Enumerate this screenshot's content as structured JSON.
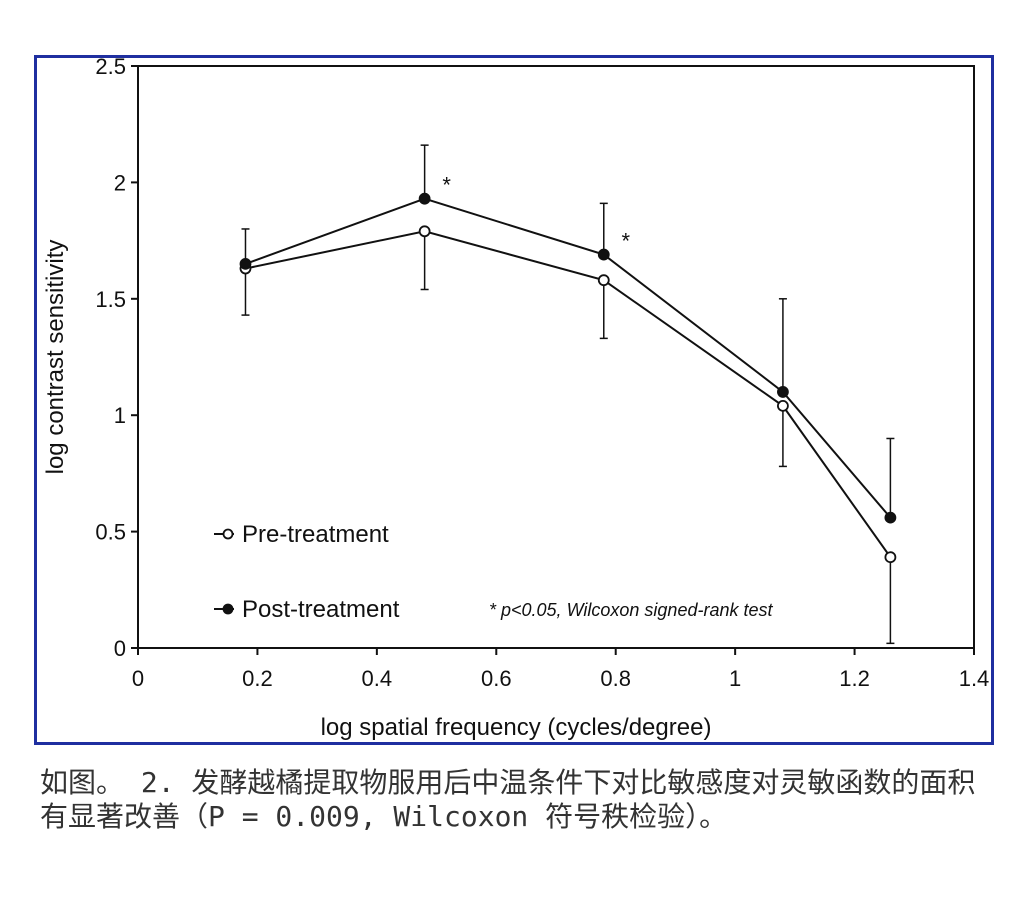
{
  "chart_data": {
    "type": "line",
    "xlabel": "log spatial frequency (cycles/degree)",
    "ylabel": "log contrast sensitivity",
    "xlim": [
      0,
      1.4
    ],
    "ylim": [
      0,
      2.5
    ],
    "x_ticks": [
      "0",
      "0.2",
      "0.4",
      "0.6",
      "0.8",
      "1",
      "1.2",
      "1.4"
    ],
    "y_ticks": [
      "0",
      "0.5",
      "1",
      "1.5",
      "2",
      "2.5"
    ],
    "x_tick_values": [
      0,
      0.2,
      0.4,
      0.6,
      0.8,
      1.0,
      1.2,
      1.4
    ],
    "y_tick_values": [
      0,
      0.5,
      1.0,
      1.5,
      2.0,
      2.5
    ],
    "x": [
      0.18,
      0.48,
      0.78,
      1.08,
      1.26
    ],
    "series": [
      {
        "name": "Pre-treatment",
        "marker": "open-circle",
        "values": [
          1.63,
          1.79,
          1.58,
          1.04,
          0.39
        ],
        "error_low": [
          1.43,
          1.54,
          1.33,
          0.78,
          0.02
        ],
        "error_high": null
      },
      {
        "name": "Post-treatment",
        "marker": "filled-circle",
        "values": [
          1.65,
          1.93,
          1.69,
          1.1,
          0.56
        ],
        "error_low": null,
        "error_high": [
          1.8,
          2.16,
          1.91,
          1.5,
          0.9
        ]
      }
    ],
    "significance_markers": [
      {
        "x": 0.48,
        "label": "*"
      },
      {
        "x": 0.78,
        "label": "*"
      }
    ],
    "annotation": "* p<0.05, Wilcoxon signed-rank test",
    "legend_position": "bottom-left",
    "grid": false,
    "colors": {
      "frame": "#1f2fa0",
      "line": "#111111",
      "axis": "#111111"
    }
  },
  "caption": "如图。 2. 发酵越橘提取物服用后中温条件下对比敏感度对灵敏函数的面积有显著改善（P = 0.009, Wilcoxon 符号秩检验）。"
}
